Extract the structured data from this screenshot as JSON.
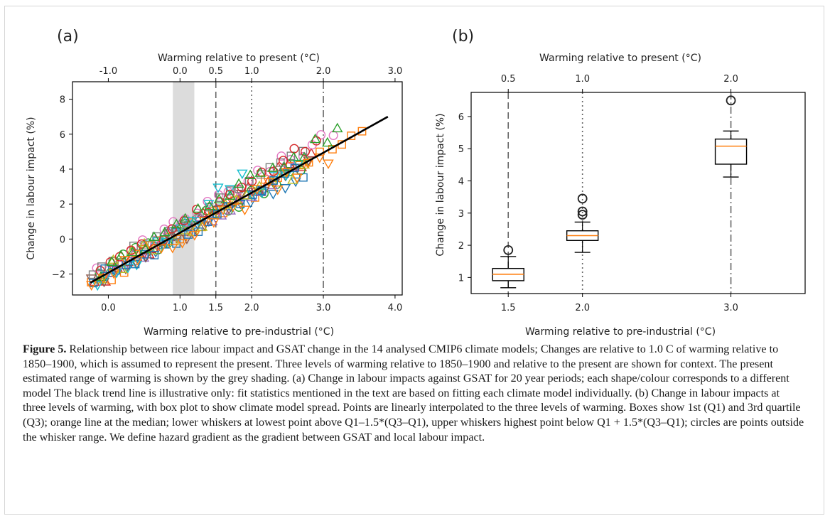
{
  "chart_data": [
    {
      "type": "scatter",
      "panel_label": "(a)",
      "xlabel": "Warming relative to pre-industrial (°C)",
      "ylabel": "Change in labour impact (%)",
      "xlim": [
        -0.5,
        4.1
      ],
      "ylim": [
        -3.2,
        9.0
      ],
      "x_ticks": [
        0.0,
        1.0,
        1.5,
        2.0,
        3.0,
        4.0
      ],
      "x_tick_labels": [
        "0.0",
        "1.0",
        "1.5",
        "2.0",
        "3.0",
        "4.0"
      ],
      "y_ticks": [
        -2,
        0,
        2,
        4,
        6,
        8
      ],
      "y_tick_labels": [
        "−2",
        "0",
        "2",
        "4",
        "6",
        "8"
      ],
      "secondary_xlabel": "Warming relative to present (°C)",
      "secondary_x_ticks": [
        0.0,
        1.0,
        1.5,
        2.0,
        3.0,
        4.0
      ],
      "secondary_x_tick_labels": [
        "-1.0",
        "0.0",
        "0.5",
        "1.0",
        "2.0",
        "3.0"
      ],
      "shaded_range": [
        0.9,
        1.2
      ],
      "reference_lines": [
        {
          "x": 1.5,
          "style": "dashed"
        },
        {
          "x": 2.0,
          "style": "dotted"
        },
        {
          "x": 3.0,
          "style": "dashdot"
        }
      ],
      "trend_line": {
        "x": [
          -0.25,
          3.9
        ],
        "y": [
          -2.5,
          7.0
        ]
      },
      "colors": [
        "#d62728",
        "#1f77b4",
        "#2ca02c",
        "#ff7f0e",
        "#9467bd",
        "#8c564b",
        "#e377c2",
        "#7f7f7f",
        "#bcbd22",
        "#17becf"
      ],
      "markers": [
        "triangle-up",
        "triangle-down",
        "circle",
        "square"
      ],
      "grid": false
    },
    {
      "type": "box",
      "panel_label": "(b)",
      "xlabel": "Warming relative to pre-industrial (°C)",
      "ylabel": "Change in labour impact (%)",
      "xlim": [
        1.25,
        3.5
      ],
      "ylim": [
        0.5,
        6.75
      ],
      "y_ticks": [
        1,
        2,
        3,
        4,
        5,
        6
      ],
      "y_tick_labels": [
        "1",
        "2",
        "3",
        "4",
        "5",
        "6"
      ],
      "secondary_xlabel": "Warming relative to present (°C)",
      "boxes": [
        {
          "x": 1.5,
          "label": "1.5",
          "top_label": "0.5",
          "line_style": "dashed",
          "whisker_low": 0.68,
          "q1": 0.9,
          "median": 1.1,
          "q3": 1.28,
          "whisker_high": 1.65,
          "outliers": [
            1.85
          ]
        },
        {
          "x": 2.0,
          "label": "2.0",
          "top_label": "1.0",
          "line_style": "dotted",
          "whisker_low": 1.78,
          "q1": 2.15,
          "median": 2.3,
          "q3": 2.45,
          "whisker_high": 2.72,
          "outliers": [
            2.95,
            3.05,
            3.45
          ]
        },
        {
          "x": 3.0,
          "label": "3.0",
          "top_label": "2.0",
          "line_style": "dashdot",
          "whisker_low": 4.12,
          "q1": 4.52,
          "median": 5.08,
          "q3": 5.3,
          "whisker_high": 5.55,
          "outliers": [
            6.5
          ]
        }
      ],
      "box_color": "#000000",
      "median_color": "#ff7f0e",
      "grid": false
    }
  ],
  "caption": {
    "label": "Figure 5.",
    "text": "Relationship between rice labour impact and GSAT change in the 14 analysed CMIP6 climate models; Changes are relative to 1.0 C of warming relative to 1850–1900, which is assumed to represent the present. Three levels of warming relative to 1850–1900 and relative to the present are shown for context. The present estimated range of warming is shown by the grey shading. (a) Change in labour impacts against GSAT for 20 year periods; each shape/colour corresponds to a different model The black trend line is illustrative only: fit statistics mentioned in the text are based on fitting each climate model individually. (b) Change in labour impacts at three levels of warming, with box plot to show climate model spread. Points are linearly interpolated to the three levels of warming. Boxes show 1st (Q1) and 3rd quartile (Q3); orange line at the median; lower whiskers at lowest point above Q1–1.5*(Q3–Q1), upper whiskers highest point below Q1 + 1.5*(Q3–Q1); circles are points outside the whisker range. We define hazard gradient as the gradient between GSAT and local labour impact."
  }
}
